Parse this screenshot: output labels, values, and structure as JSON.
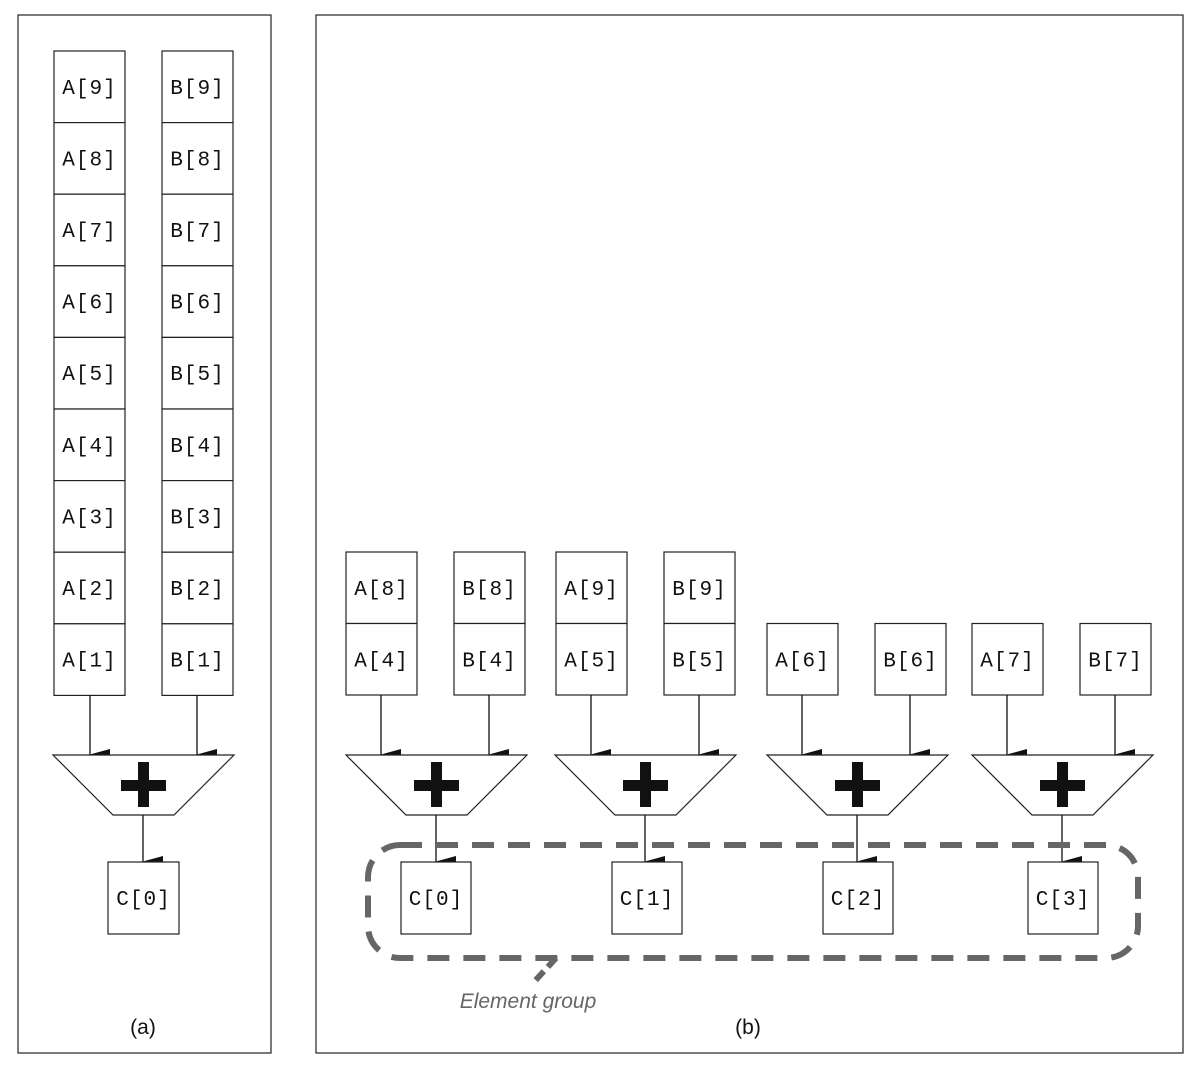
{
  "panel_a": {
    "caption": "(a)",
    "column_a": [
      "A[9]",
      "A[8]",
      "A[7]",
      "A[6]",
      "A[5]",
      "A[4]",
      "A[3]",
      "A[2]",
      "A[1]"
    ],
    "column_b": [
      "B[9]",
      "B[8]",
      "B[7]",
      "B[6]",
      "B[5]",
      "B[4]",
      "B[3]",
      "B[2]",
      "B[1]"
    ],
    "adder_symbol": "plus",
    "output": "C[0]"
  },
  "panel_b": {
    "caption": "(b)",
    "lanes": [
      {
        "a": [
          "A[8]",
          "A[4]"
        ],
        "b": [
          "B[8]",
          "B[4]"
        ],
        "output": "C[0]"
      },
      {
        "a": [
          "A[9]",
          "A[5]"
        ],
        "b": [
          "B[9]",
          "B[5]"
        ],
        "output": "C[1]"
      },
      {
        "a": [
          "A[6]"
        ],
        "b": [
          "B[6]"
        ],
        "output": "C[2]"
      },
      {
        "a": [
          "A[7]"
        ],
        "b": [
          "B[7]"
        ],
        "output": "C[3]"
      }
    ],
    "group_label": "Element group",
    "group_outline_color": "#666666"
  }
}
